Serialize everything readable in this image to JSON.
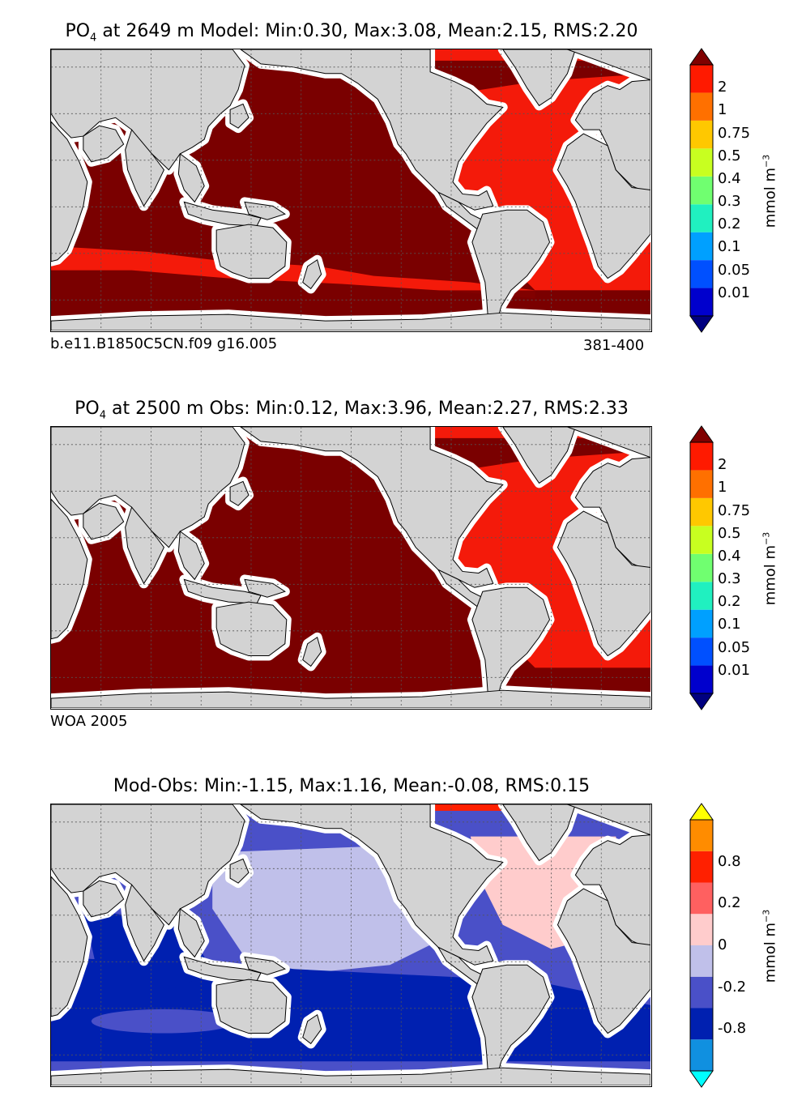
{
  "panels": [
    {
      "title_pre": "PO",
      "title_sub": "4",
      "title_post": " at 2649 m Model: Min:0.30, Max:3.08, Mean:2.15, RMS:2.20",
      "footer_left": "b.e11.B1850C5CN.f09 g16.005",
      "footer_right": "381-400",
      "colorbar_ticks": [
        "2",
        "1",
        "0.75",
        "0.5",
        "0.4",
        "0.3",
        "0.2",
        "0.1",
        "0.05",
        "0.01"
      ],
      "units_main": "mmol m",
      "units_sup": "−3"
    },
    {
      "title_pre": "PO",
      "title_sub": "4",
      "title_post": " at 2500 m Obs: Min:0.12, Max:3.96, Mean:2.27, RMS:2.33",
      "footer_left": "WOA 2005",
      "footer_right": "",
      "colorbar_ticks": [
        "2",
        "1",
        "0.75",
        "0.5",
        "0.4",
        "0.3",
        "0.2",
        "0.1",
        "0.05",
        "0.01"
      ],
      "units_main": "mmol m",
      "units_sup": "−3"
    },
    {
      "title_pre": "Mod-Obs: Min:-1.15, Max:1.16, Mean:-0.08, RMS:0.15",
      "title_sub": "",
      "title_post": "",
      "footer_left": "",
      "footer_right": "",
      "colorbar_ticks": [
        "0.8",
        "0.2",
        "0",
        "-0.2",
        "-0.8"
      ],
      "units_main": "mmol m",
      "units_sup": "−3"
    }
  ],
  "colors": {
    "land": "#d3d3d3",
    "ocean_fill": "#7a0000",
    "atlantic_fill": "#f41a0a",
    "no_data": "#ffffff",
    "gridline": "#555555",
    "conc_scale": [
      "#000080",
      "#0000cd",
      "#0050ff",
      "#00a0ff",
      "#20f0c0",
      "#70ff70",
      "#c8ff20",
      "#ffc800",
      "#ff7000",
      "#ff1a00",
      "#800000"
    ],
    "diff_scale": [
      "#00ffff",
      "#1090e0",
      "#0020b0",
      "#4a50c8",
      "#c0c0ea",
      "#ffcccc",
      "#ff6060",
      "#ff2000",
      "#ff8c00",
      "#ffff00"
    ]
  },
  "chart_data": [
    {
      "type": "heatmap",
      "title": "PO4 at 2649 m Model: Min:0.30, Max:3.08, Mean:2.15, RMS:2.20",
      "variable": "PO4",
      "depth_m": 2649,
      "stats": {
        "min": 0.3,
        "max": 3.08,
        "mean": 2.15,
        "rms": 2.2
      },
      "case": "b.e11.B1850C5CN.f09 g16.005",
      "years": "381-400",
      "colorbar": {
        "label": "mmol m^-3",
        "levels": [
          0.01,
          0.05,
          0.1,
          0.2,
          0.3,
          0.4,
          0.5,
          0.75,
          1,
          2
        ],
        "extend": "both"
      },
      "regions": {
        "pacific": ">2",
        "indian": ">2",
        "southern_ocean": ">2 with 1-2 band",
        "atlantic": "1-2"
      }
    },
    {
      "type": "heatmap",
      "title": "PO4 at 2500 m Obs: Min:0.12, Max:3.96, Mean:2.27, RMS:2.33",
      "variable": "PO4",
      "depth_m": 2500,
      "stats": {
        "min": 0.12,
        "max": 3.96,
        "mean": 2.27,
        "rms": 2.33
      },
      "source": "WOA 2005",
      "colorbar": {
        "label": "mmol m^-3",
        "levels": [
          0.01,
          0.05,
          0.1,
          0.2,
          0.3,
          0.4,
          0.5,
          0.75,
          1,
          2
        ],
        "extend": "both"
      },
      "regions": {
        "pacific": ">2",
        "indian": ">2",
        "southern_ocean": ">2",
        "atlantic": "1-2"
      }
    },
    {
      "type": "heatmap",
      "title": "Mod-Obs: Min:-1.15, Max:1.16, Mean:-0.08, RMS:0.15",
      "stats": {
        "min": -1.15,
        "max": 1.16,
        "mean": -0.08,
        "rms": 0.15
      },
      "colorbar": {
        "label": "mmol m^-3",
        "levels": [
          -0.8,
          -0.2,
          0,
          0.2,
          0.8
        ],
        "extend": "both"
      },
      "regions": {
        "pacific": "-0.2 to 0",
        "indian": "-0.2 to -0.8",
        "southern_ocean": "-0.2 to -0.8",
        "north_atlantic": "0 to 0.2"
      }
    }
  ]
}
